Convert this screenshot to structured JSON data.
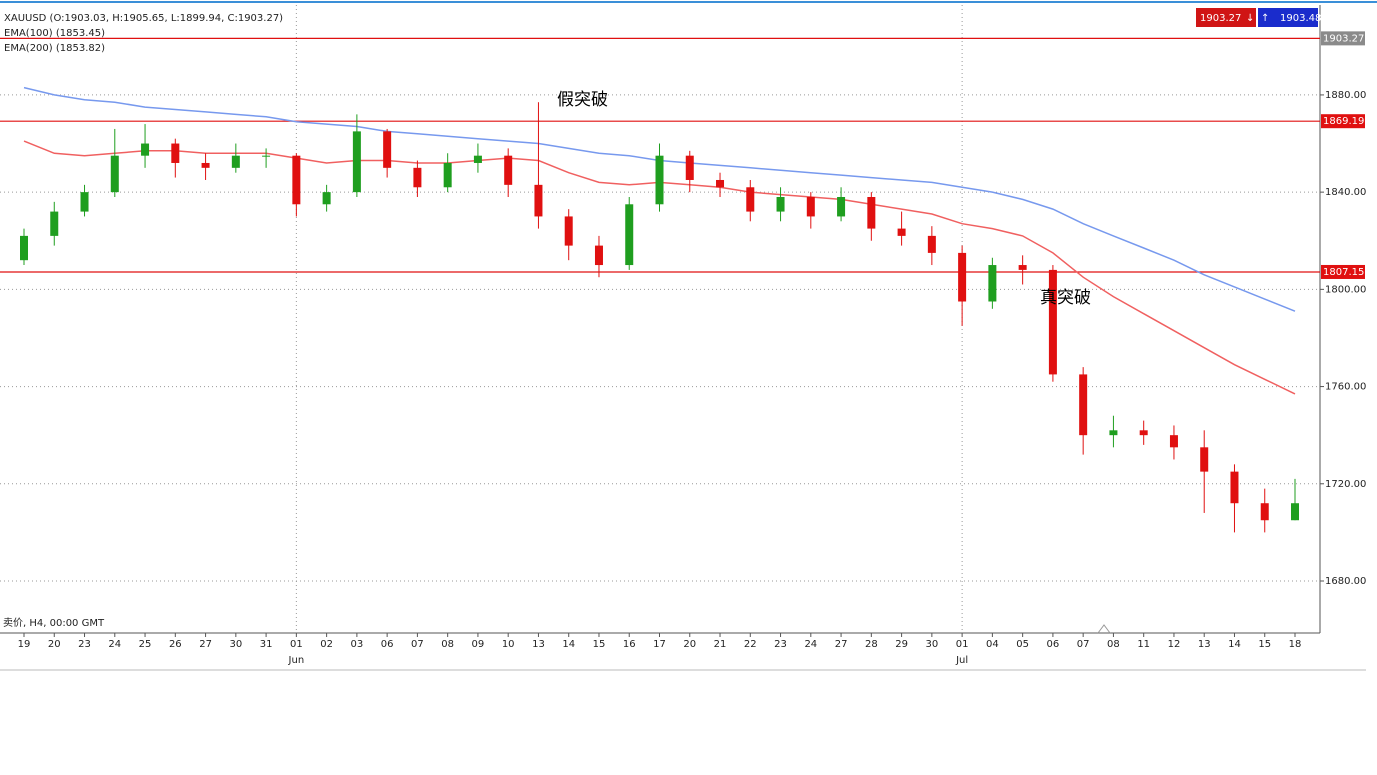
{
  "chart_data": {
    "type": "candlestick",
    "title": "XAUUSD (O:1903.03, H:1905.65, L:1899.94, C:1903.27)",
    "footer": "卖价, H4, 00:00 GMT",
    "categories": [
      "19",
      "20",
      "23",
      "24",
      "25",
      "26",
      "27",
      "30",
      "31",
      "01",
      "02",
      "03",
      "06",
      "07",
      "08",
      "09",
      "10",
      "13",
      "14",
      "15",
      "16",
      "17",
      "20",
      "21",
      "22",
      "23",
      "24",
      "27",
      "28",
      "29",
      "30",
      "01",
      "04",
      "05",
      "06",
      "07",
      "08",
      "11",
      "12",
      "13",
      "14",
      "15",
      "18"
    ],
    "months": [
      null,
      null,
      null,
      null,
      null,
      null,
      null,
      null,
      null,
      "Jun",
      null,
      null,
      null,
      null,
      null,
      null,
      null,
      null,
      null,
      null,
      null,
      null,
      null,
      null,
      null,
      null,
      null,
      null,
      null,
      null,
      null,
      "Jul",
      null,
      null,
      null,
      null,
      null,
      null,
      null,
      null,
      null,
      null,
      null
    ],
    "open": [
      1812,
      1822,
      1832,
      1840,
      1855,
      1860,
      1852,
      1850,
      1855,
      1855,
      1835,
      1840,
      1865,
      1850,
      1842,
      1852,
      1855,
      1843,
      1830,
      1818,
      1810,
      1835,
      1855,
      1845,
      1842,
      1832,
      1838,
      1830,
      1838,
      1825,
      1822,
      1815,
      1795,
      1810,
      1808,
      1765,
      1740,
      1742,
      1740,
      1735,
      1725,
      1712,
      1705
    ],
    "high": [
      1825,
      1836,
      1843,
      1866,
      1868,
      1862,
      1856,
      1860,
      1858,
      1856,
      1843,
      1872,
      1866,
      1853,
      1856,
      1860,
      1858,
      1877,
      1833,
      1822,
      1838,
      1860,
      1857,
      1848,
      1845,
      1842,
      1840,
      1842,
      1840,
      1832,
      1826,
      1818,
      1813,
      1814,
      1810,
      1768,
      1748,
      1746,
      1744,
      1742,
      1728,
      1718,
      1722
    ],
    "low": [
      1810,
      1818,
      1830,
      1838,
      1850,
      1846,
      1845,
      1848,
      1850,
      1830,
      1832,
      1838,
      1846,
      1838,
      1840,
      1848,
      1838,
      1825,
      1812,
      1805,
      1808,
      1832,
      1840,
      1838,
      1828,
      1828,
      1825,
      1828,
      1820,
      1818,
      1810,
      1785,
      1792,
      1802,
      1762,
      1732,
      1735,
      1736,
      1730,
      1708,
      1700,
      1700,
      1705
    ],
    "close": [
      1822,
      1832,
      1840,
      1855,
      1860,
      1852,
      1850,
      1855,
      1855,
      1835,
      1840,
      1865,
      1850,
      1842,
      1852,
      1855,
      1843,
      1830,
      1818,
      1810,
      1835,
      1855,
      1845,
      1842,
      1832,
      1838,
      1830,
      1838,
      1825,
      1822,
      1815,
      1795,
      1810,
      1808,
      1765,
      1740,
      1742,
      1740,
      1735,
      1725,
      1712,
      1705,
      1712
    ],
    "up_color": "#1f9e1f",
    "down_color": "#e01010",
    "series": [
      {
        "name": "EMA(100) (1853.45)",
        "color": "#f06060",
        "values": [
          1861,
          1856,
          1855,
          1856,
          1857,
          1857,
          1856,
          1856,
          1856,
          1854,
          1852,
          1853,
          1853,
          1852,
          1852,
          1853,
          1854,
          1853,
          1848,
          1844,
          1843,
          1844,
          1843,
          1842,
          1840,
          1839,
          1838,
          1837,
          1835,
          1833,
          1831,
          1827,
          1825,
          1822,
          1815,
          1805,
          1797,
          1790,
          1783,
          1776,
          1769,
          1763,
          1757
        ]
      },
      {
        "name": "EMA(200) (1853.82)",
        "color": "#7799ee",
        "values": [
          1883,
          1880,
          1878,
          1877,
          1875,
          1874,
          1873,
          1872,
          1871,
          1869,
          1868,
          1867,
          1865,
          1864,
          1863,
          1862,
          1861,
          1860,
          1858,
          1856,
          1855,
          1853,
          1852,
          1851,
          1850,
          1849,
          1848,
          1847,
          1846,
          1845,
          1844,
          1842,
          1840,
          1837,
          1833,
          1827,
          1822,
          1817,
          1812,
          1806,
          1801,
          1796,
          1791
        ]
      }
    ],
    "levels": [
      1903.27,
      1869.19,
      1807.15
    ],
    "bid": 1903.27,
    "ask": 1903.48,
    "annotations": [
      "假突破",
      "真突破"
    ],
    "ylim": [
      1658.6,
      1917.0
    ],
    "yticks": [
      {
        "value": 1680,
        "label": "1680.00"
      },
      {
        "value": 1720,
        "label": "1720.00"
      },
      {
        "value": 1760,
        "label": "1760.00"
      },
      {
        "value": 1800,
        "label": "1800.00"
      },
      {
        "value": 1840,
        "label": "1840.00"
      },
      {
        "value": 1880,
        "label": "1880.00"
      }
    ],
    "grid": true
  }
}
